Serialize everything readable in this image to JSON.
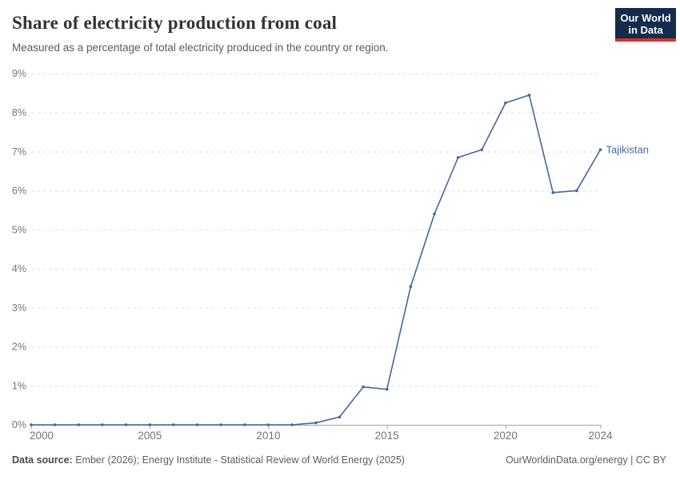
{
  "header": {
    "title": "Share of electricity production from coal",
    "subtitle": "Measured as a percentage of total electricity produced in the country or region.",
    "logo": {
      "line1": "Our World",
      "line2": "in Data",
      "bg_color": "#142c4c",
      "accent_color": "#d4342c"
    }
  },
  "chart_data": {
    "type": "line",
    "title": "Share of electricity production from coal",
    "xlabel": "",
    "ylabel": "",
    "xlim": [
      2000,
      2024
    ],
    "ylim": [
      0,
      9
    ],
    "grid": "horizontal-dashed",
    "legend_position": "line-end-label",
    "x": [
      2000,
      2001,
      2002,
      2003,
      2004,
      2005,
      2006,
      2007,
      2008,
      2009,
      2010,
      2011,
      2012,
      2013,
      2014,
      2015,
      2016,
      2017,
      2018,
      2019,
      2020,
      2021,
      2022,
      2023,
      2024
    ],
    "xticks": [
      2000,
      2005,
      2010,
      2015,
      2020,
      2024
    ],
    "ytick_values": [
      0,
      1,
      2,
      3,
      4,
      5,
      6,
      7,
      8,
      9
    ],
    "ytick_labels": [
      "0%",
      "1%",
      "2%",
      "3%",
      "4%",
      "5%",
      "6%",
      "7%",
      "8%",
      "9%"
    ],
    "series": [
      {
        "name": "Tajikistan",
        "color": "#4666a0",
        "values": [
          0,
          0,
          0,
          0,
          0,
          0,
          0,
          0,
          0,
          0,
          0,
          0,
          0.05,
          0.2,
          0.97,
          0.91,
          3.54,
          5.4,
          6.85,
          7.05,
          8.25,
          8.45,
          5.95,
          6.0,
          7.05
        ]
      }
    ]
  },
  "footer": {
    "source_label": "Data source:",
    "source_text": " Ember (2026); Energy Institute - Statistical Review of World Energy (2025)",
    "citation": "OurWorldinData.org/energy | CC BY"
  },
  "colors": {
    "line": "#4666a0",
    "axis": "#a3a3a3",
    "gridline": "#e2e2e2",
    "tick_text": "#757575"
  }
}
